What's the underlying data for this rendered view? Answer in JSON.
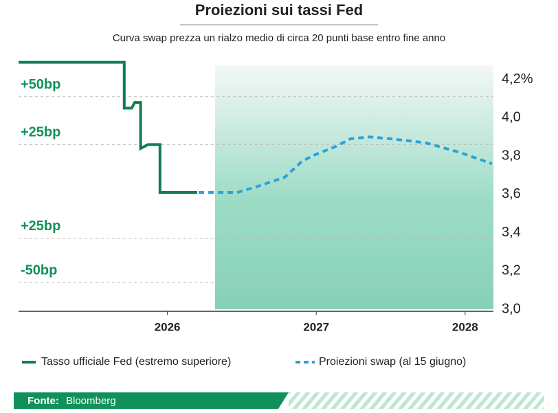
{
  "chart_data": {
    "type": "line",
    "title": "Proiezioni sui tassi Fed",
    "subtitle": "Curva swap prezza un rialzo medio di circa 20 punti base entro fine anno",
    "xlim": [
      2025.0,
      2028.19
    ],
    "xticks": [
      2026,
      2027,
      2028
    ],
    "ylim": [
      3.0,
      4.31
    ],
    "yticks": [
      {
        "value": 3.0,
        "label": "3,0"
      },
      {
        "value": 3.2,
        "label": "3,2"
      },
      {
        "value": 3.4,
        "label": "3,4"
      },
      {
        "value": 3.6,
        "label": "3,6"
      },
      {
        "value": 3.8,
        "label": "3,8"
      },
      {
        "value": 4.0,
        "label": "4,0"
      },
      {
        "value": 4.2,
        "label": "4,2%"
      }
    ],
    "grid": false,
    "shaded_x": [
      2026.32,
      2028.19
    ],
    "reference_lines": [
      {
        "label": "+50bp",
        "value": 4.11
      },
      {
        "label": "+25bp",
        "value": 3.86
      },
      {
        "label": "+25bp",
        "value": 3.37
      },
      {
        "label": "-50bp",
        "value": 3.14
      }
    ],
    "series": [
      {
        "name": "Tasso ufficiale Fed (estremo superiore)",
        "color": "#0f7f4f",
        "style": "solid",
        "x": [
          2025.0,
          2025.71,
          2025.71,
          2025.76,
          2025.78,
          2025.82,
          2025.82,
          2025.87,
          2025.88,
          2025.95,
          2025.95,
          2026.2
        ],
        "values": [
          4.29,
          4.29,
          4.05,
          4.05,
          4.08,
          4.08,
          3.84,
          3.86,
          3.86,
          3.86,
          3.61,
          3.61
        ]
      },
      {
        "name": "Proiezioni swap (al 15 giugno)",
        "color": "#2aa3d9",
        "style": "dashed",
        "x": [
          2026.21,
          2026.47,
          2026.6,
          2026.79,
          2026.9,
          2026.97,
          2027.13,
          2027.23,
          2027.36,
          2027.5,
          2027.73,
          2027.96,
          2028.18
        ],
        "values": [
          3.61,
          3.61,
          3.64,
          3.69,
          3.77,
          3.8,
          3.85,
          3.89,
          3.9,
          3.89,
          3.87,
          3.82,
          3.76
        ]
      }
    ],
    "source_label": "Fonte:",
    "source": "Bloomberg"
  }
}
